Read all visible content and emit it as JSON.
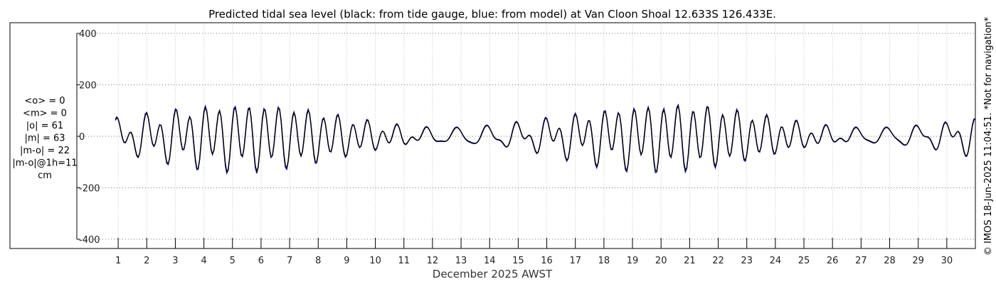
{
  "chart_data": {
    "type": "line",
    "title": "Predicted tidal sea level (black: from tide gauge, blue: from model) at Van Cloon Shoal 12.633S 126.433E.",
    "xlabel": "December 2025 AWST",
    "ylabel": "",
    "unit": "cm",
    "xlim": [
      0.3,
      31.0
    ],
    "ylim": [
      -400,
      400
    ],
    "yticks": [
      -400,
      -200,
      0,
      200,
      400
    ],
    "xticks": [
      1,
      2,
      3,
      4,
      5,
      6,
      7,
      8,
      9,
      10,
      11,
      12,
      13,
      14,
      15,
      16,
      17,
      18,
      19,
      20,
      21,
      22,
      23,
      24,
      25,
      26,
      27,
      28,
      29,
      30
    ],
    "grid": true,
    "series_start": 0.9,
    "series_end": 31.0,
    "series_step": 0.05,
    "stats": [
      "<o> = 0",
      "<m> = 0",
      "|o| = 61",
      "|m| = 63",
      "|m-o| = 22",
      "|m-o|@1h=11",
      "cm"
    ],
    "side_note": "© IMOS 18-Jun-2025 11:04:51. *Not for navigation*",
    "series": [
      {
        "name": "tide gauge",
        "color": "#000000",
        "model": {
          "z0": 0,
          "semidiurnal_period_days": 0.5175,
          "semidiurnal_phase": 1.2,
          "diurnal_period_days": 1.0758,
          "diurnal_phase": 0.3,
          "spring_neap_period_days": 14.765,
          "spring_center_day": 5.6,
          "semidiurnal_min": 6,
          "semidiurnal_max": 110,
          "diurnal_min": 18,
          "diurnal_max": 40
        }
      },
      {
        "name": "model",
        "color": "#1f1fd0",
        "model": {
          "z0": 0,
          "semidiurnal_period_days": 0.5175,
          "semidiurnal_phase": 1.25,
          "diurnal_period_days": 1.0758,
          "diurnal_phase": 0.35,
          "spring_neap_period_days": 14.765,
          "spring_center_day": 5.6,
          "semidiurnal_min": 6,
          "semidiurnal_max": 114,
          "diurnal_min": 20,
          "diurnal_max": 42
        }
      }
    ]
  }
}
